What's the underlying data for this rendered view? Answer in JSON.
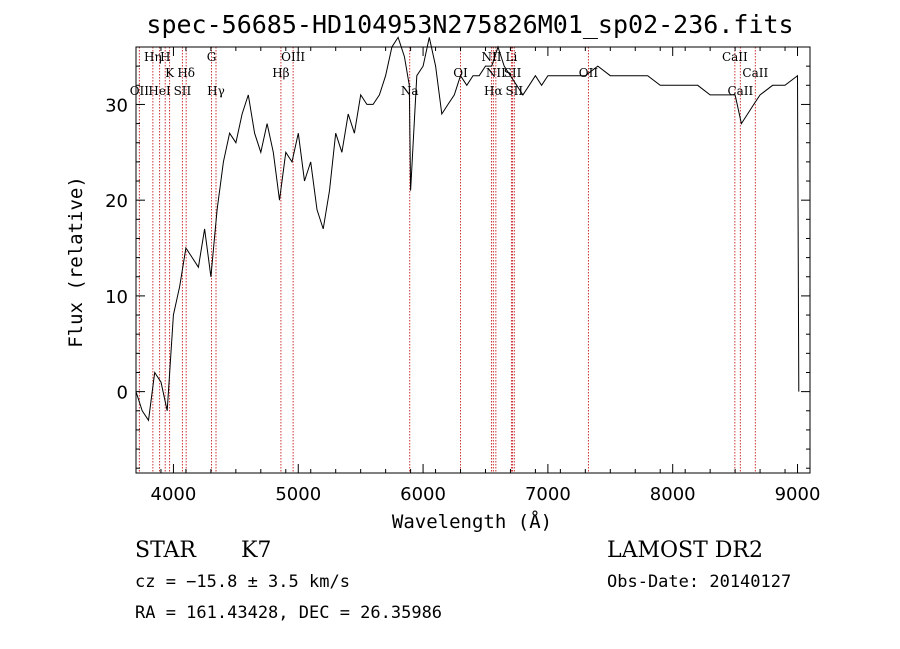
{
  "chart_data": {
    "type": "line",
    "title": "spec-56685-HD104953N275826M01_sp02-236.fits",
    "xlabel": "Wavelength (Å)",
    "ylabel": "Flux (relative)",
    "xlim": [
      3700,
      9100
    ],
    "ylim": [
      -8.5,
      36
    ],
    "x_ticks": [
      4000,
      5000,
      6000,
      7000,
      8000,
      9000
    ],
    "y_ticks": [
      0,
      10,
      20,
      30
    ],
    "grid": false,
    "line_color": "#000000",
    "marker_color": "#cc3333",
    "spectrum": {
      "x": [
        3700,
        3750,
        3800,
        3850,
        3900,
        3950,
        4000,
        4050,
        4100,
        4150,
        4200,
        4250,
        4300,
        4350,
        4400,
        4450,
        4500,
        4550,
        4600,
        4650,
        4700,
        4750,
        4800,
        4850,
        4900,
        4950,
        5000,
        5050,
        5100,
        5150,
        5200,
        5250,
        5300,
        5350,
        5400,
        5450,
        5500,
        5550,
        5600,
        5650,
        5700,
        5750,
        5800,
        5850,
        5890,
        5900,
        5950,
        6000,
        6050,
        6100,
        6150,
        6200,
        6250,
        6300,
        6350,
        6400,
        6450,
        6500,
        6550,
        6600,
        6650,
        6700,
        6750,
        6800,
        6850,
        6900,
        6950,
        7000,
        7100,
        7200,
        7300,
        7400,
        7500,
        7600,
        7700,
        7800,
        7900,
        8000,
        8100,
        8200,
        8300,
        8400,
        8500,
        8550,
        8600,
        8650,
        8700,
        8800,
        8900,
        9000,
        9010
      ],
      "y": [
        0,
        -2,
        -3,
        2,
        1,
        -2,
        8,
        11,
        15,
        14,
        13,
        17,
        12,
        19,
        24,
        27,
        26,
        29,
        31,
        27,
        25,
        28,
        25,
        20,
        25,
        24,
        27,
        22,
        24,
        19,
        17,
        21,
        27,
        25,
        29,
        27,
        31,
        30,
        30,
        31,
        33,
        36,
        37,
        35,
        32,
        21,
        33,
        34,
        37,
        34,
        29,
        30,
        31,
        33,
        32,
        33,
        33,
        34,
        34,
        36,
        34,
        33,
        32,
        31,
        32,
        33,
        32,
        33,
        33,
        33,
        33,
        34,
        33,
        33,
        33,
        33,
        32,
        32,
        32,
        32,
        31,
        31,
        31,
        28,
        29,
        30,
        31,
        32,
        32,
        33,
        0
      ]
    },
    "lines": [
      {
        "label": "OII",
        "wavelength": 3727,
        "row": 3
      },
      {
        "label": "Hη",
        "wavelength": 3835,
        "row": 1
      },
      {
        "label": "H",
        "wavelength": 3934,
        "row": 1
      },
      {
        "label": "K",
        "wavelength": 3969,
        "row": 2
      },
      {
        "label": "HeI",
        "wavelength": 3889,
        "row": 3
      },
      {
        "label": "SII",
        "wavelength": 4072,
        "row": 3
      },
      {
        "label": "Hδ",
        "wavelength": 4102,
        "row": 2
      },
      {
        "label": "G",
        "wavelength": 4305,
        "row": 1
      },
      {
        "label": "Hγ",
        "wavelength": 4341,
        "row": 3
      },
      {
        "label": "Hβ",
        "wavelength": 4861,
        "row": 2
      },
      {
        "label": "OIII",
        "wavelength": 4959,
        "row": 1
      },
      {
        "label": "Na",
        "wavelength": 5893,
        "row": 3
      },
      {
        "label": "OI",
        "wavelength": 6300,
        "row": 2
      },
      {
        "label": "NII",
        "wavelength": 6548,
        "row": 1
      },
      {
        "label": "Li",
        "wavelength": 6708,
        "row": 1
      },
      {
        "label": "NII",
        "wavelength": 6583,
        "row": 2
      },
      {
        "label": "SII",
        "wavelength": 6717,
        "row": 2
      },
      {
        "label": "Hα",
        "wavelength": 6563,
        "row": 3
      },
      {
        "label": "SII",
        "wavelength": 6731,
        "row": 3
      },
      {
        "label": "OII",
        "wavelength": 7325,
        "row": 2
      },
      {
        "label": "CaII",
        "wavelength": 8498,
        "row": 1
      },
      {
        "label": "CaII",
        "wavelength": 8662,
        "row": 2
      },
      {
        "label": "CaII",
        "wavelength": 8542,
        "row": 3
      }
    ]
  },
  "info": {
    "object_class": "STAR",
    "subclass": "K7",
    "survey": "LAMOST DR2",
    "cz": "cz = −15.8 ± 3.5 km/s",
    "obs_date": "Obs-Date: 20140127",
    "coords": "RA = 161.43428, DEC =  26.35986"
  }
}
